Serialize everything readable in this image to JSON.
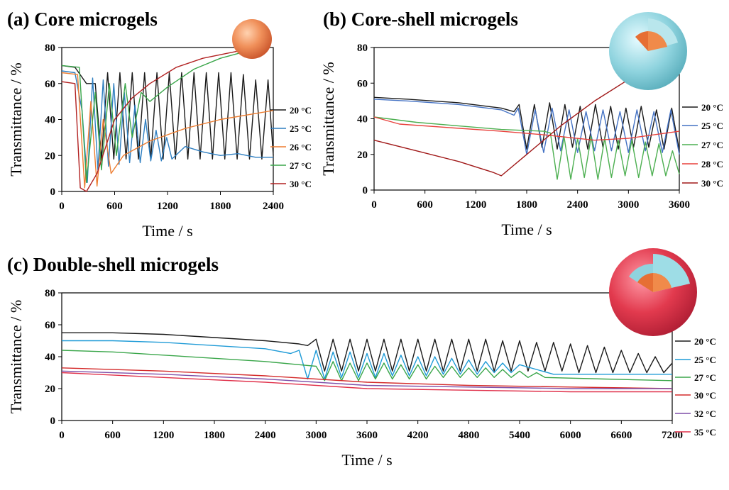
{
  "chart_data": [
    {
      "type": "line",
      "title": "(a) Core microgels",
      "x_label": "Time / s",
      "y_label": "Transmittance / %",
      "xlim": [
        0,
        2400
      ],
      "xticks": [
        0,
        600,
        1200,
        1800,
        2400
      ],
      "ylim": [
        0,
        80
      ],
      "yticks": [
        0,
        20,
        40,
        60,
        80
      ],
      "series": [
        {
          "name": "20 °C",
          "color": "#1a1a1a",
          "x": [
            0,
            150,
            280,
            380,
            450,
            520,
            590,
            660,
            730,
            800,
            870,
            940,
            1010,
            1080,
            1150,
            1220,
            1290,
            1360,
            1430,
            1500,
            1570,
            1640,
            1710,
            1780,
            1850,
            1920,
            1990,
            2060,
            2130,
            2200,
            2270,
            2340,
            2400
          ],
          "values": [
            70,
            69,
            60,
            60,
            18,
            66,
            18,
            66,
            18,
            66,
            18,
            66,
            18,
            66,
            18,
            66,
            18,
            66,
            18,
            66,
            18,
            66,
            18,
            66,
            18,
            66,
            18,
            65,
            18,
            62,
            18,
            62,
            20
          ]
        },
        {
          "name": "25 °C",
          "color": "#2f7fc1",
          "x": [
            0,
            150,
            230,
            290,
            350,
            410,
            470,
            530,
            590,
            650,
            710,
            770,
            830,
            890,
            950,
            1010,
            1070,
            1130,
            1190,
            1250,
            1400,
            1600,
            1800,
            2000,
            2200,
            2400
          ],
          "values": [
            67,
            66,
            45,
            5,
            63,
            12,
            62,
            14,
            60,
            15,
            55,
            16,
            48,
            16,
            40,
            17,
            34,
            17,
            30,
            18,
            25,
            22,
            20,
            21,
            19,
            19
          ]
        },
        {
          "name": "26 °C",
          "color": "#ed7d31",
          "x": [
            0,
            180,
            260,
            330,
            400,
            470,
            560,
            700,
            1000,
            1400,
            1800,
            2400
          ],
          "values": [
            66,
            65,
            2,
            50,
            3,
            40,
            10,
            20,
            28,
            35,
            40,
            45
          ]
        },
        {
          "name": "27 °C",
          "color": "#3aa64a",
          "x": [
            0,
            200,
            280,
            380,
            450,
            540,
            620,
            720,
            800,
            900,
            1000,
            1200,
            1500,
            1800,
            2100
          ],
          "values": [
            70,
            69,
            5,
            55,
            12,
            60,
            20,
            60,
            30,
            55,
            50,
            58,
            68,
            74,
            78
          ]
        },
        {
          "name": "30 °C",
          "color": "#b22222",
          "x": [
            0,
            150,
            210,
            280,
            400,
            600,
            800,
            1000,
            1300,
            1600,
            2000,
            2100
          ],
          "values": [
            61,
            60,
            2,
            0,
            10,
            40,
            52,
            60,
            69,
            74,
            78,
            78
          ]
        }
      ]
    },
    {
      "type": "line",
      "title": "(b) Core-shell microgels",
      "x_label": "Time / s",
      "y_label": "Transmittance / %",
      "xlim": [
        0,
        3600
      ],
      "xticks": [
        0,
        600,
        1200,
        1800,
        2400,
        3000,
        3600
      ],
      "ylim": [
        0,
        80
      ],
      "yticks": [
        0,
        20,
        40,
        60,
        80
      ],
      "series": [
        {
          "name": "20 °C",
          "color": "#1a1a1a",
          "x": [
            0,
            400,
            1000,
            1500,
            1650,
            1710,
            1800,
            1890,
            1980,
            2070,
            2160,
            2250,
            2340,
            2430,
            2520,
            2610,
            2700,
            2790,
            2880,
            2970,
            3060,
            3150,
            3240,
            3330,
            3420,
            3510,
            3600
          ],
          "values": [
            52,
            51,
            49,
            46,
            44,
            48,
            23,
            48,
            24,
            49,
            23,
            48,
            24,
            47,
            23,
            48,
            24,
            47,
            23,
            46,
            24,
            47,
            24,
            45,
            23,
            46,
            22
          ]
        },
        {
          "name": "25 °C",
          "color": "#4472c4",
          "x": [
            0,
            400,
            1000,
            1500,
            1650,
            1700,
            1800,
            1900,
            2000,
            2100,
            2200,
            2300,
            2400,
            2500,
            2600,
            2700,
            2800,
            2900,
            3000,
            3100,
            3200,
            3300,
            3400,
            3500,
            3600
          ],
          "values": [
            51,
            50,
            48,
            45,
            42,
            46,
            20,
            45,
            21,
            46,
            22,
            45,
            21,
            44,
            22,
            45,
            22,
            44,
            21,
            45,
            22,
            44,
            21,
            45,
            20
          ]
        },
        {
          "name": "27 °C",
          "color": "#4caf50",
          "x": [
            0,
            500,
            1000,
            1500,
            2000,
            2080,
            2160,
            2240,
            2320,
            2400,
            2480,
            2560,
            2640,
            2720,
            2800,
            2880,
            2960,
            3040,
            3120,
            3200,
            3280,
            3360,
            3440,
            3520,
            3600
          ],
          "values": [
            41,
            38,
            36,
            34,
            33,
            32,
            6,
            30,
            6,
            29,
            7,
            30,
            6,
            29,
            7,
            28,
            8,
            28,
            7,
            27,
            8,
            26,
            8,
            22,
            9
          ]
        },
        {
          "name": "28 °C",
          "color": "#e8413c",
          "x": [
            0,
            300,
            900,
            1500,
            2000,
            2600,
            3000,
            3600
          ],
          "values": [
            41,
            37,
            35,
            33,
            31,
            28,
            29,
            33
          ]
        },
        {
          "name": "30 °C",
          "color": "#a01818",
          "x": [
            0,
            500,
            1000,
            1400,
            1500,
            1800,
            2200,
            2600,
            3000,
            3200
          ],
          "values": [
            28,
            22,
            16,
            10,
            8,
            20,
            36,
            50,
            62,
            66
          ]
        }
      ]
    },
    {
      "type": "line",
      "title": "(c) Double-shell microgels",
      "x_label": "Time / s",
      "y_label": "Transmittance / %",
      "xlim": [
        0,
        7200
      ],
      "xticks": [
        0,
        600,
        1200,
        1800,
        2400,
        3000,
        3600,
        4200,
        4800,
        5400,
        6000,
        6600,
        7200
      ],
      "ylim": [
        0,
        80
      ],
      "yticks": [
        0,
        20,
        40,
        60,
        80
      ],
      "series": [
        {
          "name": "20 °C",
          "color": "#1a1a1a",
          "x": [
            0,
            600,
            1200,
            1800,
            2400,
            2800,
            2900,
            3000,
            3100,
            3200,
            3300,
            3400,
            3500,
            3600,
            3700,
            3800,
            3900,
            4000,
            4100,
            4200,
            4300,
            4400,
            4500,
            4600,
            4700,
            4800,
            4900,
            5000,
            5100,
            5200,
            5300,
            5400,
            5500,
            5600,
            5700,
            5800,
            5900,
            6000,
            6100,
            6200,
            6300,
            6400,
            6500,
            6600,
            6700,
            6800,
            6900,
            7000,
            7100,
            7200
          ],
          "values": [
            55,
            55,
            54,
            52,
            50,
            48,
            47,
            51,
            31,
            51,
            31,
            51,
            31,
            51,
            31,
            51,
            31,
            51,
            31,
            51,
            31,
            51,
            31,
            51,
            31,
            51,
            31,
            51,
            31,
            50,
            31,
            50,
            31,
            49,
            31,
            49,
            31,
            48,
            30,
            47,
            30,
            46,
            30,
            44,
            30,
            42,
            30,
            40,
            30,
            36
          ]
        },
        {
          "name": "25 °C",
          "color": "#1f9bd7",
          "x": [
            0,
            600,
            1200,
            1800,
            2400,
            2700,
            2800,
            2900,
            3000,
            3100,
            3200,
            3300,
            3400,
            3500,
            3600,
            3700,
            3800,
            3900,
            4000,
            4100,
            4200,
            4300,
            4400,
            4500,
            4600,
            4700,
            4800,
            4900,
            5000,
            5100,
            5200,
            5300,
            5400,
            5800,
            6400,
            7200
          ],
          "values": [
            50,
            50,
            49,
            47,
            45,
            42,
            44,
            26,
            44,
            26,
            43,
            27,
            43,
            27,
            42,
            27,
            42,
            28,
            41,
            28,
            40,
            28,
            40,
            29,
            39,
            29,
            38,
            29,
            37,
            30,
            36,
            30,
            35,
            29,
            29,
            29
          ]
        },
        {
          "name": "27 °C",
          "color": "#3aa64a",
          "x": [
            0,
            600,
            1200,
            1800,
            2400,
            2800,
            3000,
            3100,
            3200,
            3300,
            3400,
            3500,
            3600,
            3700,
            3800,
            3900,
            4000,
            4100,
            4200,
            4300,
            4400,
            4500,
            4600,
            4700,
            4800,
            4900,
            5000,
            5100,
            5200,
            5300,
            5400,
            5500,
            5600,
            5700,
            6400,
            7200
          ],
          "values": [
            44,
            43,
            41,
            39,
            37,
            35,
            34,
            25,
            37,
            25,
            36,
            25,
            36,
            26,
            36,
            26,
            35,
            26,
            35,
            26,
            34,
            27,
            34,
            27,
            33,
            27,
            33,
            27,
            32,
            27,
            31,
            27,
            30,
            27,
            26,
            25
          ]
        },
        {
          "name": "30 °C",
          "color": "#d42a2a",
          "x": [
            0,
            1200,
            2400,
            3600,
            4800,
            6000,
            7200
          ],
          "values": [
            33,
            31,
            28,
            24,
            22,
            21,
            20
          ]
        },
        {
          "name": "32 °C",
          "color": "#7e4fa8",
          "x": [
            0,
            1200,
            2400,
            3600,
            4800,
            6000,
            7200
          ],
          "values": [
            31,
            29,
            26,
            22,
            21,
            20,
            20
          ]
        },
        {
          "name": "35 °C",
          "color": "#e0304a",
          "x": [
            0,
            1200,
            2400,
            3600,
            4800,
            6000,
            7200
          ],
          "values": [
            30,
            27,
            24,
            20,
            19,
            18,
            18
          ]
        }
      ]
    }
  ]
}
